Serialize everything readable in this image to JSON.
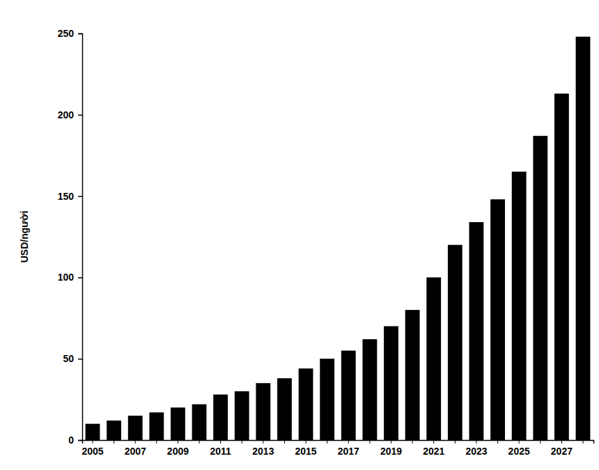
{
  "chart_data": {
    "type": "bar",
    "y_label": "USD/người",
    "categories": [
      "2005",
      null,
      "2007",
      null,
      "2009",
      null,
      "2011",
      null,
      "2013",
      null,
      "2015",
      null,
      "2017",
      null,
      "2019",
      null,
      "2021",
      null,
      "2023",
      null,
      "2025",
      null,
      "2027",
      null
    ],
    "values": [
      10,
      12,
      15,
      17,
      20,
      22,
      28,
      30,
      35,
      38,
      44,
      50,
      55,
      62,
      70,
      80,
      100,
      120,
      134,
      148,
      165,
      187,
      213,
      248
    ],
    "color": "#000000",
    "ylim": [
      0,
      250
    ],
    "yticks": [
      0,
      50,
      100,
      150,
      200,
      250
    ],
    "grid": false
  }
}
